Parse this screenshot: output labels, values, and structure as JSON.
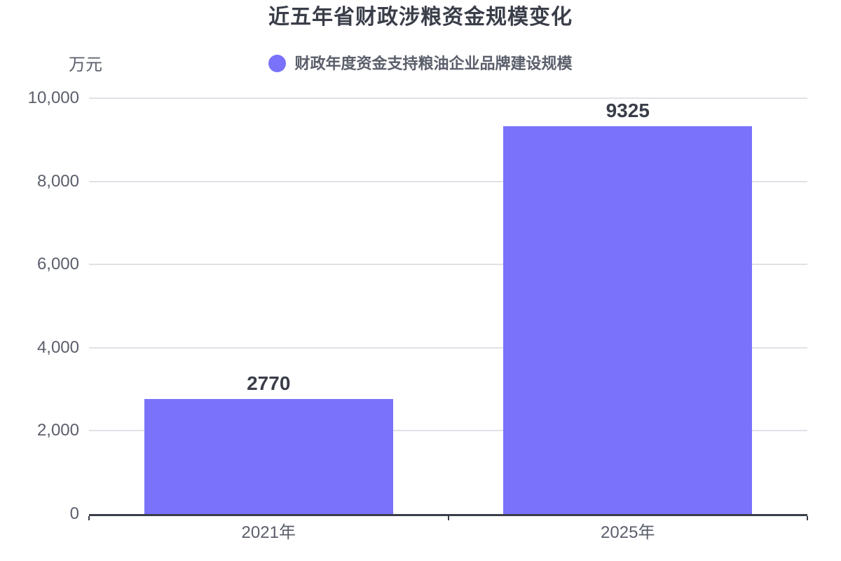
{
  "title": "近五年省财政涉粮资金规模变化",
  "legend": {
    "label": "财政年度资金支持粮油企业品牌建设规模"
  },
  "y_axis": {
    "unit": "万元",
    "tick_labels": [
      "0",
      "2,000",
      "4,000",
      "6,000",
      "8,000",
      "10,000"
    ]
  },
  "x_axis": {
    "categories": [
      "2021年",
      "2025年"
    ]
  },
  "colors": {
    "bar": "#7A72FA",
    "title_text": "#3A3E49",
    "label_text": "#5B5F6B",
    "gridline": "#E1E1E7",
    "axis_line": "#3A3E49",
    "value_label_text": "#3A3E49",
    "value_label_outline": "#FFFFFF"
  },
  "chart_data": {
    "type": "bar",
    "title": "近五年省财政涉粮资金规模变化",
    "categories": [
      "2021年",
      "2025年"
    ],
    "series": [
      {
        "name": "财政年度资金支持粮油企业品牌建设规模",
        "values": [
          2770,
          9325
        ]
      }
    ],
    "value_labels": [
      "2770",
      "9325"
    ],
    "xlabel": "",
    "ylabel": "万元",
    "ylim": [
      0,
      10000
    ],
    "ytick_step": 2000,
    "grid": true,
    "legend_position": "top"
  }
}
